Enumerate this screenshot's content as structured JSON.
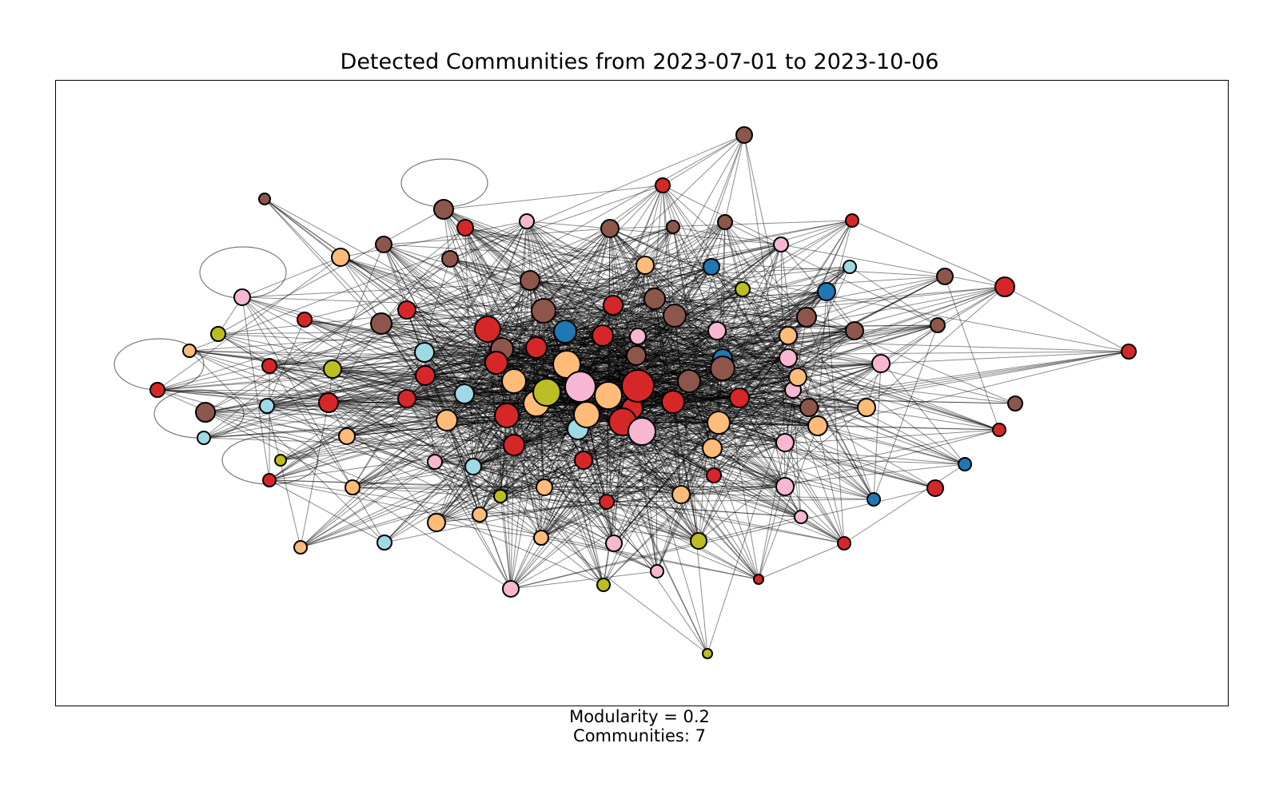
{
  "title": "Detected Communities from 2023-07-01 to 2023-10-06",
  "caption": {
    "modularity": "Modularity = 0.2",
    "communities": "Communities: 7"
  },
  "palette": {
    "blue": "#1f77b4",
    "peach": "#ffbb78",
    "red": "#d62728",
    "brown": "#8c564b",
    "pink": "#f7b6d2",
    "olive": "#bcbd22",
    "cyan": "#9edae5"
  },
  "edge_color": "#000000"
}
